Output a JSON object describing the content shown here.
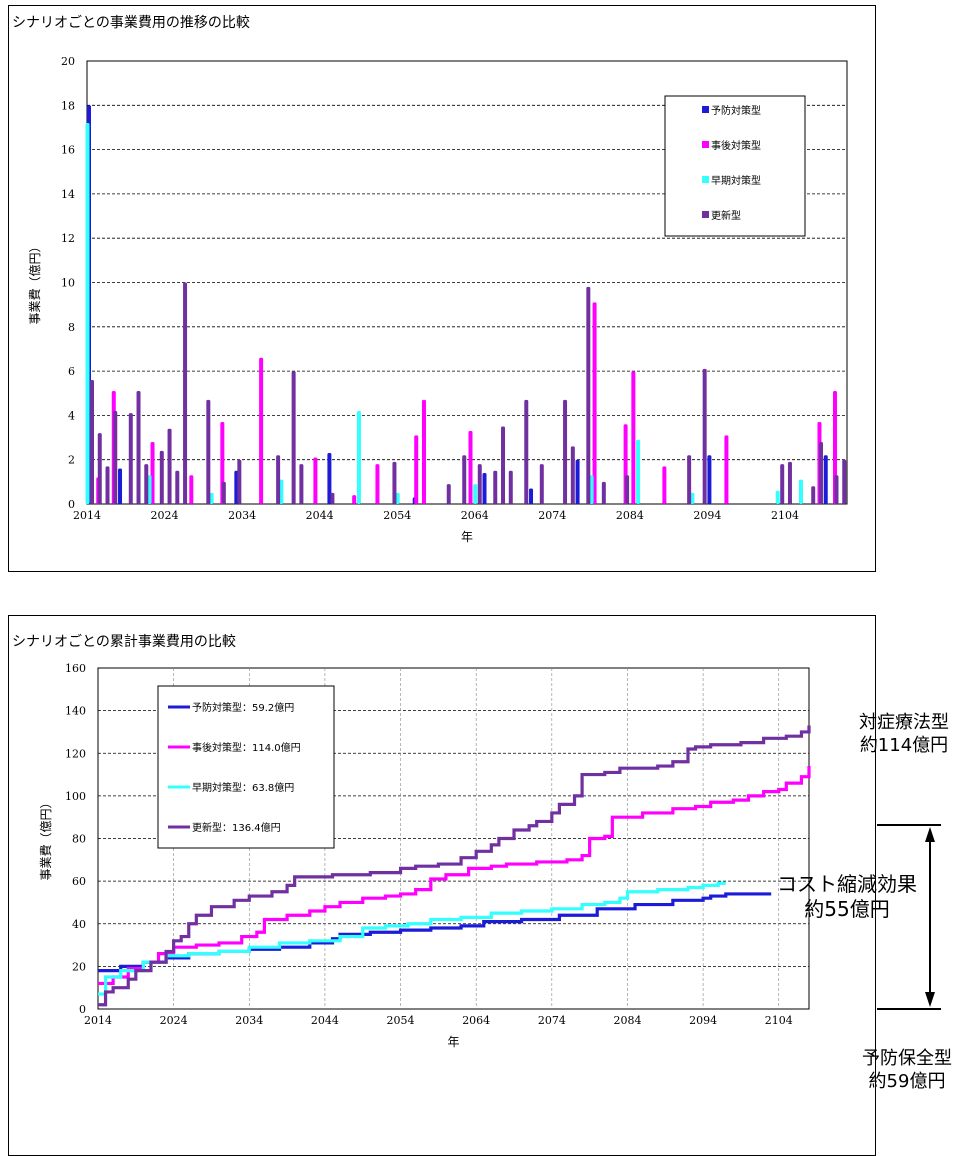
{
  "chart_data": [
    {
      "type": "bar",
      "title": "シナリオごとの事業費用の推移の比較",
      "xlabel": "年",
      "ylabel": "事業費（億円）",
      "ylim": [
        0,
        20
      ],
      "yticks": [
        "0",
        "2",
        "4",
        "6",
        "8",
        "10",
        "12",
        "14",
        "16",
        "18",
        "20"
      ],
      "xticks": [
        "2014",
        "2024",
        "2034",
        "2044",
        "2054",
        "2064",
        "2074",
        "2084",
        "2094",
        "2104"
      ],
      "xrange": [
        2014,
        2112
      ],
      "grid": true,
      "legend_position": "top-right",
      "colors": {
        "yobou": "#1c1cd8",
        "jigo": "#ff00ff",
        "souki": "#33ffff",
        "koushin": "#7030a0"
      },
      "series": [
        {
          "name": "予防対策型",
          "color": "#1c1cd8",
          "points": [
            [
              2014,
              18.0
            ],
            [
              2018,
              1.6
            ],
            [
              2033,
              1.5
            ],
            [
              2045,
              2.3
            ],
            [
              2056,
              0.3
            ],
            [
              2065,
              1.4
            ],
            [
              2071,
              0.7
            ],
            [
              2077,
              2.0
            ],
            [
              2094,
              2.2
            ],
            [
              2109,
              2.2
            ]
          ]
        },
        {
          "name": "事後対策型",
          "color": "#ff00ff",
          "points": [
            [
              2015,
              1.2
            ],
            [
              2017,
              5.1
            ],
            [
              2022,
              2.8
            ],
            [
              2027,
              1.3
            ],
            [
              2031,
              3.7
            ],
            [
              2036,
              6.6
            ],
            [
              2043,
              2.1
            ],
            [
              2048,
              0.4
            ],
            [
              2051,
              1.8
            ],
            [
              2056,
              3.1
            ],
            [
              2057,
              4.7
            ],
            [
              2063,
              3.3
            ],
            [
              2079,
              9.1
            ],
            [
              2083,
              3.6
            ],
            [
              2084,
              6.0
            ],
            [
              2088,
              1.7
            ],
            [
              2096,
              3.1
            ],
            [
              2108,
              3.7
            ],
            [
              2110,
              5.1
            ]
          ]
        },
        {
          "name": "早期対策型",
          "color": "#33ffff",
          "points": [
            [
              2014,
              17.2
            ],
            [
              2022,
              1.3
            ],
            [
              2030,
              0.5
            ],
            [
              2039,
              1.1
            ],
            [
              2049,
              4.2
            ],
            [
              2054,
              0.5
            ],
            [
              2064,
              0.9
            ],
            [
              2079,
              1.3
            ],
            [
              2085,
              2.9
            ],
            [
              2092,
              0.5
            ],
            [
              2103,
              0.6
            ],
            [
              2106,
              1.1
            ]
          ]
        },
        {
          "name": "更新型",
          "color": "#7030a0",
          "points": [
            [
              2014,
              5.6
            ],
            [
              2015,
              3.2
            ],
            [
              2016,
              1.7
            ],
            [
              2017,
              4.2
            ],
            [
              2019,
              4.1
            ],
            [
              2020,
              5.1
            ],
            [
              2021,
              1.8
            ],
            [
              2023,
              2.4
            ],
            [
              2024,
              3.4
            ],
            [
              2025,
              1.5
            ],
            [
              2026,
              10.0
            ],
            [
              2029,
              4.7
            ],
            [
              2031,
              1.0
            ],
            [
              2033,
              2.0
            ],
            [
              2038,
              2.2
            ],
            [
              2040,
              6.0
            ],
            [
              2041,
              1.8
            ],
            [
              2045,
              0.5
            ],
            [
              2053,
              1.9
            ],
            [
              2060,
              0.9
            ],
            [
              2062,
              2.2
            ],
            [
              2064,
              1.8
            ],
            [
              2066,
              1.5
            ],
            [
              2067,
              3.5
            ],
            [
              2068,
              1.5
            ],
            [
              2070,
              4.7
            ],
            [
              2072,
              1.8
            ],
            [
              2075,
              4.7
            ],
            [
              2076,
              2.6
            ],
            [
              2078,
              9.8
            ],
            [
              2080,
              1.0
            ],
            [
              2083,
              1.3
            ],
            [
              2091,
              2.2
            ],
            [
              2093,
              6.1
            ],
            [
              2103,
              1.8
            ],
            [
              2104,
              1.9
            ],
            [
              2107,
              0.8
            ],
            [
              2108,
              2.8
            ],
            [
              2110,
              1.3
            ],
            [
              2111,
              2.0
            ]
          ]
        }
      ]
    },
    {
      "type": "line",
      "title": "シナリオごとの累計事業費用の比較",
      "xlabel": "年",
      "ylabel": "事業費（億円）",
      "ylim": [
        0,
        160
      ],
      "yticks": [
        "0",
        "20",
        "40",
        "60",
        "80",
        "100",
        "120",
        "140",
        "160"
      ],
      "xticks": [
        "2014",
        "2024",
        "2034",
        "2044",
        "2054",
        "2064",
        "2074",
        "2084",
        "2094",
        "2104"
      ],
      "xrange": [
        2014,
        2108
      ],
      "grid": true,
      "legend_position": "top-left",
      "series": [
        {
          "name": "予防対策型：59.2億円",
          "color": "#1c1cd8",
          "points": [
            [
              2014,
              18
            ],
            [
              2017,
              20
            ],
            [
              2020,
              22
            ],
            [
              2023,
              24
            ],
            [
              2026,
              26
            ],
            [
              2030,
              27
            ],
            [
              2034,
              28
            ],
            [
              2038,
              29
            ],
            [
              2042,
              31
            ],
            [
              2045,
              33
            ],
            [
              2046,
              35
            ],
            [
              2050,
              36
            ],
            [
              2054,
              37
            ],
            [
              2058,
              38
            ],
            [
              2062,
              39
            ],
            [
              2065,
              41
            ],
            [
              2070,
              42
            ],
            [
              2075,
              44
            ],
            [
              2080,
              47
            ],
            [
              2085,
              49
            ],
            [
              2090,
              51
            ],
            [
              2094,
              52
            ],
            [
              2095,
              53
            ],
            [
              2097,
              54
            ],
            [
              2103,
              54
            ]
          ]
        },
        {
          "name": "事後対策型：114.0億円",
          "color": "#ff00ff",
          "points": [
            [
              2014,
              12
            ],
            [
              2016,
              15
            ],
            [
              2018,
              19
            ],
            [
              2020,
              22
            ],
            [
              2022,
              26
            ],
            [
              2024,
              29
            ],
            [
              2027,
              30
            ],
            [
              2030,
              31
            ],
            [
              2033,
              34
            ],
            [
              2035,
              36
            ],
            [
              2036,
              42
            ],
            [
              2039,
              44
            ],
            [
              2042,
              46
            ],
            [
              2044,
              48
            ],
            [
              2046,
              50
            ],
            [
              2049,
              52
            ],
            [
              2052,
              53
            ],
            [
              2054,
              54
            ],
            [
              2056,
              56
            ],
            [
              2058,
              61
            ],
            [
              2060,
              63
            ],
            [
              2063,
              66
            ],
            [
              2066,
              67
            ],
            [
              2068,
              68
            ],
            [
              2072,
              69
            ],
            [
              2076,
              70
            ],
            [
              2078,
              72
            ],
            [
              2079,
              80
            ],
            [
              2081,
              81
            ],
            [
              2082,
              90
            ],
            [
              2086,
              92
            ],
            [
              2090,
              94
            ],
            [
              2093,
              95
            ],
            [
              2095,
              97
            ],
            [
              2098,
              98
            ],
            [
              2100,
              100
            ],
            [
              2102,
              102
            ],
            [
              2104,
              103
            ],
            [
              2105,
              106
            ],
            [
              2107,
              109
            ],
            [
              2108,
              114
            ]
          ]
        },
        {
          "name": "早期対策型：63.8億円",
          "color": "#33ffff",
          "points": [
            [
              2014,
              7
            ],
            [
              2015,
              15
            ],
            [
              2017,
              18
            ],
            [
              2020,
              22
            ],
            [
              2023,
              25
            ],
            [
              2026,
              26
            ],
            [
              2030,
              27
            ],
            [
              2034,
              29
            ],
            [
              2038,
              31
            ],
            [
              2042,
              32
            ],
            [
              2046,
              34
            ],
            [
              2049,
              38
            ],
            [
              2052,
              39
            ],
            [
              2055,
              40
            ],
            [
              2058,
              42
            ],
            [
              2062,
              43
            ],
            [
              2066,
              45
            ],
            [
              2070,
              46
            ],
            [
              2074,
              47
            ],
            [
              2078,
              49
            ],
            [
              2081,
              50
            ],
            [
              2083,
              52
            ],
            [
              2084,
              55
            ],
            [
              2088,
              56
            ],
            [
              2092,
              57
            ],
            [
              2094,
              58
            ],
            [
              2096,
              59
            ],
            [
              2097,
              59
            ]
          ]
        },
        {
          "name": "更新型：136.4億円",
          "color": "#7030a0",
          "points": [
            [
              2014,
              2
            ],
            [
              2015,
              8
            ],
            [
              2016,
              10
            ],
            [
              2018,
              14
            ],
            [
              2019,
              18
            ],
            [
              2021,
              22
            ],
            [
              2023,
              27
            ],
            [
              2024,
              32
            ],
            [
              2025,
              34
            ],
            [
              2026,
              40
            ],
            [
              2027,
              44
            ],
            [
              2029,
              48
            ],
            [
              2032,
              51
            ],
            [
              2034,
              53
            ],
            [
              2037,
              55
            ],
            [
              2039,
              58
            ],
            [
              2040,
              62
            ],
            [
              2045,
              63
            ],
            [
              2050,
              64
            ],
            [
              2054,
              66
            ],
            [
              2056,
              67
            ],
            [
              2059,
              68
            ],
            [
              2062,
              71
            ],
            [
              2064,
              74
            ],
            [
              2066,
              77
            ],
            [
              2067,
              80
            ],
            [
              2069,
              84
            ],
            [
              2071,
              86
            ],
            [
              2072,
              88
            ],
            [
              2074,
              92
            ],
            [
              2075,
              96
            ],
            [
              2077,
              100
            ],
            [
              2078,
              110
            ],
            [
              2081,
              111
            ],
            [
              2083,
              113
            ],
            [
              2088,
              114
            ],
            [
              2090,
              116
            ],
            [
              2092,
              122
            ],
            [
              2093,
              123
            ],
            [
              2095,
              124
            ],
            [
              2099,
              125
            ],
            [
              2102,
              127
            ],
            [
              2105,
              128
            ],
            [
              2107,
              130
            ],
            [
              2108,
              133
            ]
          ]
        }
      ]
    }
  ],
  "annotations": {
    "taishou": [
      "対症療法型",
      "約114億円"
    ],
    "cost": [
      "コスト縮減効果",
      "約55億円"
    ],
    "yobou": [
      "予防保全型",
      "約59億円"
    ]
  }
}
